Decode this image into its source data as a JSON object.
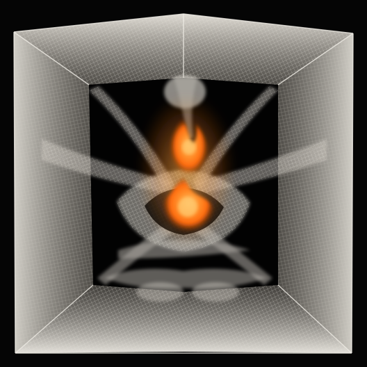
{
  "image": {
    "kind": "artwork",
    "subject": "translucent-mesh-cube",
    "colors": {
      "background": "#050505",
      "mesh": "#d8d5cc",
      "mesh_shadow": "#8f8b82",
      "core_fire": "#ff7a12",
      "core_glow": "#ffb347"
    }
  }
}
